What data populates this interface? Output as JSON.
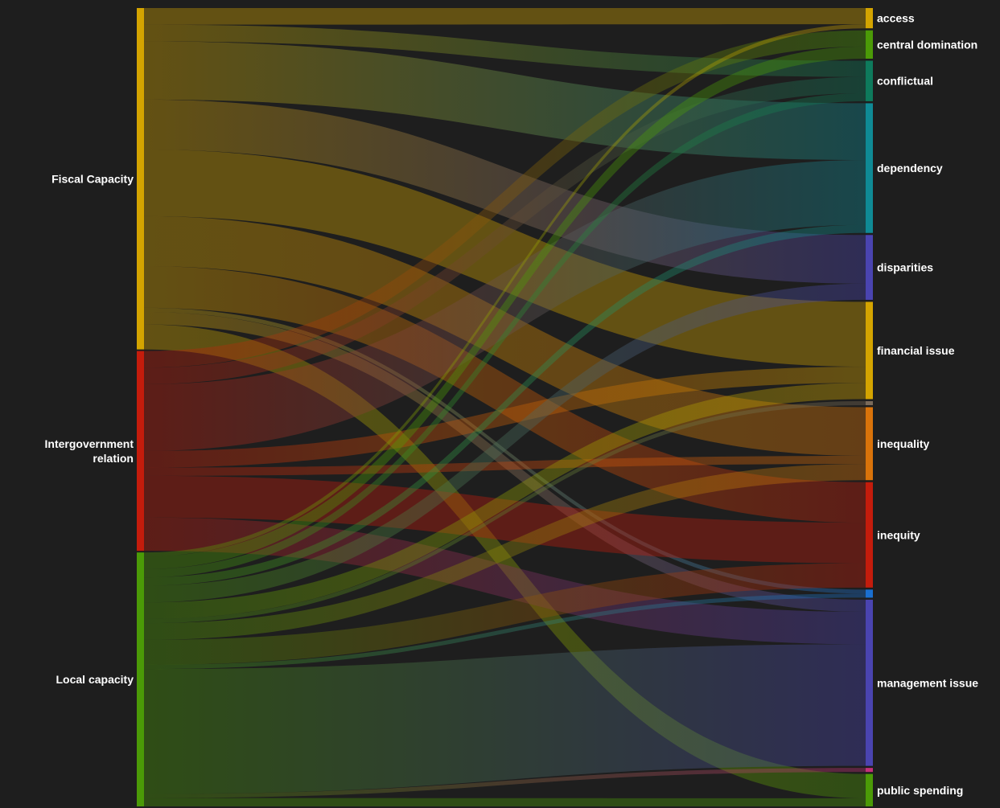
{
  "chart_data": {
    "type": "sankey",
    "sources": [
      {
        "id": "fiscal",
        "label": "Fiscal Capacity",
        "color": "#d4a400"
      },
      {
        "id": "intergov",
        "label": "Intergovernment relation",
        "label_lines": [
          "Intergovernment",
          "relation"
        ],
        "color": "#c41c0c"
      },
      {
        "id": "local",
        "label": "Local capacity",
        "color": "#4b9a07"
      }
    ],
    "targets": [
      {
        "id": "access",
        "label": "access",
        "color": "#d4a400"
      },
      {
        "id": "central",
        "label": "central domination",
        "color": "#4b9a07"
      },
      {
        "id": "conflictual",
        "label": "conflictual",
        "color": "#0e7a5c"
      },
      {
        "id": "dependency",
        "label": "dependency",
        "color": "#0f8a95"
      },
      {
        "id": "disparities",
        "label": "disparities",
        "color": "#4a44b0"
      },
      {
        "id": "financial",
        "label": "financial issue",
        "color": "#d4a400"
      },
      {
        "id": "small1",
        "label": "",
        "color": "#7a6a5a"
      },
      {
        "id": "inequality",
        "label": "inequality",
        "color": "#d9730a"
      },
      {
        "id": "inequity",
        "label": "inequity",
        "color": "#c41c0c"
      },
      {
        "id": "small2",
        "label": "",
        "color": "#1a6fd0"
      },
      {
        "id": "management",
        "label": "management issue",
        "color": "#4a44b0"
      },
      {
        "id": "small3",
        "label": "",
        "color": "#c4307a"
      },
      {
        "id": "public",
        "label": "public spending",
        "color": "#4b9a07"
      }
    ],
    "links": [
      {
        "source": "fiscal",
        "target": "access",
        "value": 2
      },
      {
        "source": "fiscal",
        "target": "conflictual",
        "value": 2
      },
      {
        "source": "fiscal",
        "target": "dependency",
        "value": 7
      },
      {
        "source": "fiscal",
        "target": "disparities",
        "value": 6
      },
      {
        "source": "fiscal",
        "target": "financial",
        "value": 8
      },
      {
        "source": "fiscal",
        "target": "inequality",
        "value": 6
      },
      {
        "source": "fiscal",
        "target": "inequity",
        "value": 5
      },
      {
        "source": "fiscal",
        "target": "small2",
        "value": 0.5
      },
      {
        "source": "fiscal",
        "target": "management",
        "value": 1.5
      },
      {
        "source": "fiscal",
        "target": "public",
        "value": 3
      },
      {
        "source": "intergov",
        "target": "central",
        "value": 2
      },
      {
        "source": "intergov",
        "target": "conflictual",
        "value": 2
      },
      {
        "source": "intergov",
        "target": "dependency",
        "value": 8
      },
      {
        "source": "intergov",
        "target": "financial",
        "value": 2
      },
      {
        "source": "intergov",
        "target": "inequality",
        "value": 1
      },
      {
        "source": "intergov",
        "target": "inequity",
        "value": 5
      },
      {
        "source": "intergov",
        "target": "management",
        "value": 4
      },
      {
        "source": "local",
        "target": "access",
        "value": 0.5
      },
      {
        "source": "local",
        "target": "central",
        "value": 1.5
      },
      {
        "source": "local",
        "target": "conflictual",
        "value": 1
      },
      {
        "source": "local",
        "target": "dependency",
        "value": 1
      },
      {
        "source": "local",
        "target": "disparities",
        "value": 2
      },
      {
        "source": "local",
        "target": "financial",
        "value": 2
      },
      {
        "source": "local",
        "target": "small1",
        "value": 0.5
      },
      {
        "source": "local",
        "target": "inequality",
        "value": 2
      },
      {
        "source": "local",
        "target": "inequity",
        "value": 3
      },
      {
        "source": "local",
        "target": "small2",
        "value": 0.5
      },
      {
        "source": "local",
        "target": "management",
        "value": 15
      },
      {
        "source": "local",
        "target": "small3",
        "value": 0.5
      },
      {
        "source": "local",
        "target": "public",
        "value": 1
      }
    ],
    "background": "#1e1e1e"
  }
}
